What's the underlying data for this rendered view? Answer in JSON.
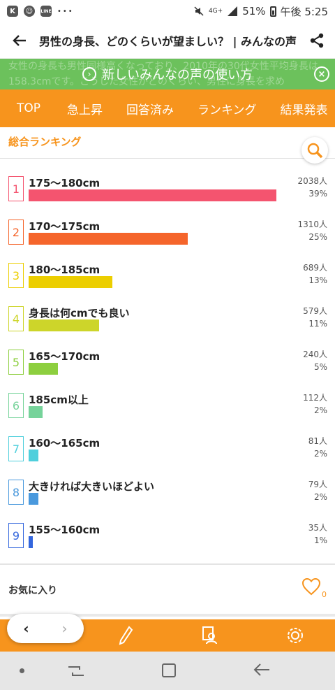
{
  "status_bar": {
    "app_icon_1": "K",
    "app_icon_2": "☺",
    "app_icon_3": "LINE",
    "dots": "•••",
    "network": "4G+",
    "battery": "51%",
    "time": "午後 5:25"
  },
  "header": {
    "title": "男性の身長、どのくらいが望ましい？ | みんなの声"
  },
  "banner": {
    "bg_line_1": "女性の身長も男性同様高くなっており、2010年の30代女性平均身長は",
    "bg_line_2": "158.3cmです。こうした女性がどのくらい、男性に身長を求め",
    "text": "新しいみんなの声の使い方",
    "close": "×"
  },
  "nav": {
    "tabs": [
      "TOP",
      "急上昇",
      "回答済み",
      "ランキング",
      "結果発表"
    ]
  },
  "section": {
    "title": "総合ランキング"
  },
  "rankings": [
    {
      "rank": "1",
      "label": "175〜180cm",
      "count": "2038人",
      "percent": "39%",
      "value": 2038,
      "color": "#f4546f"
    },
    {
      "rank": "2",
      "label": "170〜175cm",
      "count": "1310人",
      "percent": "25%",
      "value": 1310,
      "color": "#f5652b"
    },
    {
      "rank": "3",
      "label": "180〜185cm",
      "count": "689人",
      "percent": "13%",
      "value": 689,
      "color": "#ecce00"
    },
    {
      "rank": "4",
      "label": "身長は何cmでも良い",
      "count": "579人",
      "percent": "11%",
      "value": 579,
      "color": "#cdd52a"
    },
    {
      "rank": "5",
      "label": "165〜170cm",
      "count": "240人",
      "percent": "5%",
      "value": 240,
      "color": "#8dcf3f"
    },
    {
      "rank": "6",
      "label": "185cm以上",
      "count": "112人",
      "percent": "2%",
      "value": 112,
      "color": "#76d39a"
    },
    {
      "rank": "7",
      "label": "160〜165cm",
      "count": "81人",
      "percent": "2%",
      "value": 81,
      "color": "#4fcfdc"
    },
    {
      "rank": "8",
      "label": "大きければ大きいほどよい",
      "count": "79人",
      "percent": "2%",
      "value": 79,
      "color": "#4a99dd"
    },
    {
      "rank": "9",
      "label": "155〜160cm",
      "count": "35人",
      "percent": "1%",
      "value": 35,
      "color": "#3366dd"
    }
  ],
  "favorite": {
    "label": "お気に入り",
    "count": "0"
  },
  "pager": {
    "prev": "‹",
    "next": "›"
  },
  "accent_color": "#f7941d"
}
